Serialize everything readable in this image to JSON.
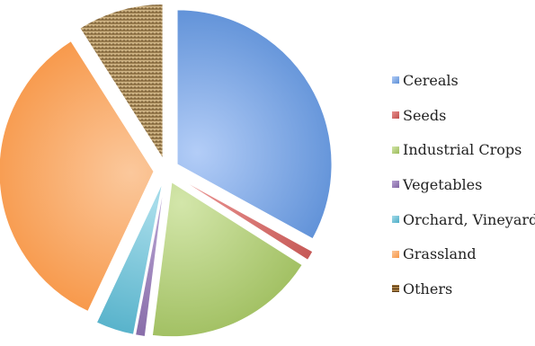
{
  "chart_data": {
    "type": "pie",
    "exploded": true,
    "legend_position": "right",
    "slices": [
      {
        "label": "Cereals",
        "value": 33,
        "color": "#5B8ED6",
        "color_light": "#B3CDF7"
      },
      {
        "label": "Seeds",
        "value": 1,
        "color": "#C0504D",
        "color_light": "#E8908E"
      },
      {
        "label": "Industrial Crops",
        "value": 18,
        "color": "#9BBB59",
        "color_light": "#D3E6AA"
      },
      {
        "label": "Vegetables",
        "value": 1,
        "color": "#8064A2",
        "color_light": "#B7A2D2"
      },
      {
        "label": "Orchard, Vineyard",
        "value": 4,
        "color": "#4BACC6",
        "color_light": "#A6DCEA"
      },
      {
        "label": "Grassland",
        "value": 34,
        "color": "#F79646",
        "color_light": "#FBC89C"
      },
      {
        "label": "Others",
        "value": 9,
        "color": "#A68753",
        "color_light": "#D9C39A",
        "pattern": "woven"
      }
    ]
  }
}
